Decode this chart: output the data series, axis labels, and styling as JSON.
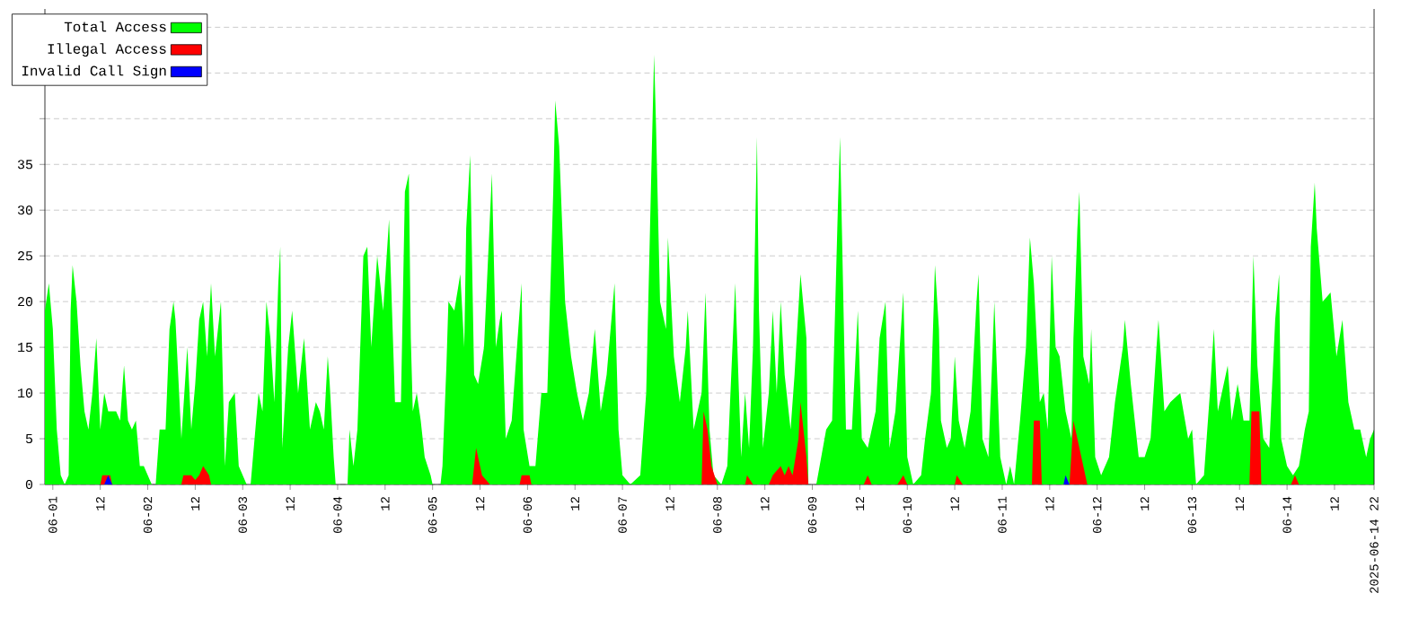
{
  "chart_data": {
    "type": "area",
    "xlim": [
      "2025-05-31T22:00",
      "2025-06-14T22:00"
    ],
    "ylim": [
      0,
      52
    ],
    "xticks": [
      {
        "value": "2025-06-01T00:00",
        "label": "06-01"
      },
      {
        "value": "2025-06-01T12:00",
        "label": "12"
      },
      {
        "value": "2025-06-02T00:00",
        "label": "06-02"
      },
      {
        "value": "2025-06-02T12:00",
        "label": "12"
      },
      {
        "value": "2025-06-03T00:00",
        "label": "06-03"
      },
      {
        "value": "2025-06-03T12:00",
        "label": "12"
      },
      {
        "value": "2025-06-04T00:00",
        "label": "06-04"
      },
      {
        "value": "2025-06-04T12:00",
        "label": "12"
      },
      {
        "value": "2025-06-05T00:00",
        "label": "06-05"
      },
      {
        "value": "2025-06-05T12:00",
        "label": "12"
      },
      {
        "value": "2025-06-06T00:00",
        "label": "06-06"
      },
      {
        "value": "2025-06-06T12:00",
        "label": "12"
      },
      {
        "value": "2025-06-07T00:00",
        "label": "06-07"
      },
      {
        "value": "2025-06-07T12:00",
        "label": "12"
      },
      {
        "value": "2025-06-08T00:00",
        "label": "06-08"
      },
      {
        "value": "2025-06-08T12:00",
        "label": "12"
      },
      {
        "value": "2025-06-09T00:00",
        "label": "06-09"
      },
      {
        "value": "2025-06-09T12:00",
        "label": "12"
      },
      {
        "value": "2025-06-10T00:00",
        "label": "06-10"
      },
      {
        "value": "2025-06-10T12:00",
        "label": "12"
      },
      {
        "value": "2025-06-11T00:00",
        "label": "06-11"
      },
      {
        "value": "2025-06-11T12:00",
        "label": "12"
      },
      {
        "value": "2025-06-12T00:00",
        "label": "06-12"
      },
      {
        "value": "2025-06-12T12:00",
        "label": "12"
      },
      {
        "value": "2025-06-13T00:00",
        "label": "06-13"
      },
      {
        "value": "2025-06-13T12:00",
        "label": "12"
      },
      {
        "value": "2025-06-14T00:00",
        "label": "06-14"
      },
      {
        "value": "2025-06-14T12:00",
        "label": "12"
      },
      {
        "value": "2025-06-14T22:00",
        "label": "2025-06-14 22"
      }
    ],
    "yticks": [
      0,
      5,
      10,
      15,
      20,
      25,
      30,
      35,
      {
        "value": 40,
        "label": null
      },
      {
        "value": 45,
        "label": null
      },
      {
        "value": 50,
        "label": null
      }
    ],
    "grid": "y",
    "legend": "top left",
    "series": [
      {
        "name": "Total Access",
        "color": "#00ff00",
        "x": [
          "2025-05-31T22:00",
          "2025-05-31T23:00",
          "2025-06-01T00:00",
          "2025-06-01T01:00",
          "2025-06-01T02:00",
          "2025-06-01T03:00",
          "2025-06-01T04:00",
          "2025-06-01T04:30",
          "2025-06-01T05:00",
          "2025-06-01T06:00",
          "2025-06-01T07:00",
          "2025-06-01T08:00",
          "2025-06-01T09:00",
          "2025-06-01T10:00",
          "2025-06-01T11:00",
          "2025-06-01T12:00",
          "2025-06-01T13:00",
          "2025-06-01T14:00",
          "2025-06-01T16:00",
          "2025-06-01T17:00",
          "2025-06-01T18:00",
          "2025-06-01T19:00",
          "2025-06-01T20:00",
          "2025-06-01T21:00",
          "2025-06-01T22:00",
          "2025-06-01T23:00",
          "2025-06-02T01:00",
          "2025-06-02T02:00",
          "2025-06-02T03:00",
          "2025-06-02T04:30",
          "2025-06-02T05:30",
          "2025-06-02T06:30",
          "2025-06-02T07:00",
          "2025-06-02T08:30",
          "2025-06-02T10:00",
          "2025-06-02T11:00",
          "2025-06-02T12:00",
          "2025-06-02T13:00",
          "2025-06-02T14:00",
          "2025-06-02T15:00",
          "2025-06-02T16:00",
          "2025-06-02T17:00",
          "2025-06-02T18:30",
          "2025-06-02T19:30",
          "2025-06-02T20:30",
          "2025-06-02T22:00",
          "2025-06-02T23:00",
          "2025-06-03T00:00",
          "2025-06-03T01:00",
          "2025-06-03T02:00",
          "2025-06-03T03:00",
          "2025-06-03T04:00",
          "2025-06-03T05:00",
          "2025-06-03T06:00",
          "2025-06-03T07:00",
          "2025-06-03T08:00",
          "2025-06-03T09:00",
          "2025-06-03T09:30",
          "2025-06-03T10:00",
          "2025-06-03T11:30",
          "2025-06-03T12:30",
          "2025-06-03T14:00",
          "2025-06-03T15:30",
          "2025-06-03T16:00",
          "2025-06-03T17:00",
          "2025-06-03T18:30",
          "2025-06-03T19:30",
          "2025-06-03T20:30",
          "2025-06-03T21:30",
          "2025-06-03T22:00",
          "2025-06-03T23:00",
          "2025-06-03T23:30",
          "2025-06-04T02:30",
          "2025-06-04T03:00",
          "2025-06-04T04:00",
          "2025-06-04T05:00",
          "2025-06-04T06:30",
          "2025-06-04T07:30",
          "2025-06-04T08:30",
          "2025-06-04T10:00",
          "2025-06-04T11:30",
          "2025-06-04T13:00",
          "2025-06-04T14:30",
          "2025-06-04T16:00",
          "2025-06-04T17:00",
          "2025-06-04T18:00",
          "2025-06-04T18:30",
          "2025-06-04T19:00",
          "2025-06-04T20:00",
          "2025-06-04T21:00",
          "2025-06-04T22:00",
          "2025-06-04T23:30",
          "2025-06-05T00:00",
          "2025-06-05T02:00",
          "2025-06-05T02:30",
          "2025-06-05T03:30",
          "2025-06-05T04:00",
          "2025-06-05T05:30",
          "2025-06-05T07:00",
          "2025-06-05T08:00",
          "2025-06-05T08:30",
          "2025-06-05T09:30",
          "2025-06-05T10:30",
          "2025-06-05T11:30",
          "2025-06-05T13:00",
          "2025-06-05T15:00",
          "2025-06-05T16:00",
          "2025-06-05T17:00",
          "2025-06-05T17:30",
          "2025-06-05T18:30",
          "2025-06-05T20:00",
          "2025-06-05T21:30",
          "2025-06-05T22:30",
          "2025-06-05T23:00",
          "2025-06-06T00:30",
          "2025-06-06T02:00",
          "2025-06-06T03:30",
          "2025-06-06T05:00",
          "2025-06-06T06:30",
          "2025-06-06T07:00",
          "2025-06-06T08:00",
          "2025-06-06T09:30",
          "2025-06-06T11:00",
          "2025-06-06T12:30",
          "2025-06-06T14:00",
          "2025-06-06T15:30",
          "2025-06-06T17:00",
          "2025-06-06T18:30",
          "2025-06-06T20:00",
          "2025-06-06T22:00",
          "2025-06-06T23:00",
          "2025-06-07T00:00",
          "2025-06-07T02:00",
          "2025-06-07T04:30",
          "2025-06-07T06:00",
          "2025-06-07T07:30",
          "2025-06-07T08:00",
          "2025-06-07T08:30",
          "2025-06-07T09:30",
          "2025-06-07T11:00",
          "2025-06-07T11:30",
          "2025-06-07T13:00",
          "2025-06-07T14:30",
          "2025-06-07T16:00",
          "2025-06-07T16:30",
          "2025-06-07T18:00",
          "2025-06-07T19:00",
          "2025-06-07T20:00",
          "2025-06-07T21:00",
          "2025-06-07T22:00",
          "2025-06-07T23:00",
          "2025-06-08T01:00",
          "2025-06-08T02:30",
          "2025-06-08T04:30",
          "2025-06-08T06:00",
          "2025-06-08T07:00",
          "2025-06-08T08:00",
          "2025-06-08T09:00",
          "2025-06-08T10:00",
          "2025-06-08T10:30",
          "2025-06-08T11:30",
          "2025-06-08T13:00",
          "2025-06-08T14:00",
          "2025-06-08T15:00",
          "2025-06-08T16:00",
          "2025-06-08T17:00",
          "2025-06-08T18:30",
          "2025-06-08T19:30",
          "2025-06-08T21:00",
          "2025-06-08T22:30",
          "2025-06-08T23:00",
          "2025-06-09T01:00",
          "2025-06-09T03:30",
          "2025-06-09T05:00",
          "2025-06-09T06:30",
          "2025-06-09T07:00",
          "2025-06-09T08:30",
          "2025-06-09T10:00",
          "2025-06-09T11:30",
          "2025-06-09T12:30",
          "2025-06-09T14:00",
          "2025-06-09T16:00",
          "2025-06-09T17:00",
          "2025-06-09T18:30",
          "2025-06-09T19:30",
          "2025-06-09T21:00",
          "2025-06-09T23:00",
          "2025-06-10T00:00",
          "2025-06-10T01:30",
          "2025-06-10T03:30",
          "2025-06-10T04:30",
          "2025-06-10T06:00",
          "2025-06-10T07:00",
          "2025-06-10T08:00",
          "2025-06-10T08:30",
          "2025-06-10T10:00",
          "2025-06-10T11:00",
          "2025-06-10T12:00",
          "2025-06-10T13:00",
          "2025-06-10T14:30",
          "2025-06-10T16:00",
          "2025-06-10T17:30",
          "2025-06-10T18:00",
          "2025-06-10T19:00",
          "2025-06-10T20:30",
          "2025-06-10T21:30",
          "2025-06-10T22:00",
          "2025-06-10T23:30",
          "2025-06-11T01:00",
          "2025-06-11T02:00",
          "2025-06-11T03:00",
          "2025-06-11T04:30",
          "2025-06-11T06:00",
          "2025-06-11T07:00",
          "2025-06-11T08:00",
          "2025-06-11T09:30",
          "2025-06-11T10:30",
          "2025-06-11T11:30",
          "2025-06-11T12:30",
          "2025-06-11T13:30",
          "2025-06-11T14:30",
          "2025-06-11T16:00",
          "2025-06-11T17:30",
          "2025-06-11T18:00",
          "2025-06-11T19:00",
          "2025-06-11T19:30",
          "2025-06-11T20:30",
          "2025-06-11T22:00",
          "2025-06-11T22:30",
          "2025-06-11T23:30",
          "2025-06-12T01:00",
          "2025-06-12T03:00",
          "2025-06-12T04:30",
          "2025-06-12T06:30",
          "2025-06-12T07:00",
          "2025-06-12T08:30",
          "2025-06-12T10:30",
          "2025-06-12T12:00",
          "2025-06-12T13:30",
          "2025-06-12T15:00",
          "2025-06-12T15:30",
          "2025-06-12T17:00",
          "2025-06-12T18:30",
          "2025-06-12T21:00",
          "2025-06-12T23:00",
          "2025-06-13T00:00",
          "2025-06-13T01:00",
          "2025-06-13T03:00",
          "2025-06-13T04:30",
          "2025-06-13T05:30",
          "2025-06-13T06:30",
          "2025-06-13T09:00",
          "2025-06-13T10:00",
          "2025-06-13T11:30",
          "2025-06-13T13:00",
          "2025-06-13T14:30",
          "2025-06-13T15:30",
          "2025-06-13T16:30",
          "2025-06-13T18:00",
          "2025-06-13T19:30",
          "2025-06-13T21:00",
          "2025-06-13T22:00",
          "2025-06-13T22:30",
          "2025-06-14T00:00",
          "2025-06-14T01:30",
          "2025-06-14T03:00",
          "2025-06-14T04:30",
          "2025-06-14T05:30",
          "2025-06-14T06:00",
          "2025-06-14T07:00",
          "2025-06-14T07:30",
          "2025-06-14T09:00",
          "2025-06-14T11:00",
          "2025-06-14T12:30",
          "2025-06-14T14:00",
          "2025-06-14T15:30",
          "2025-06-14T17:00",
          "2025-06-14T18:30",
          "2025-06-14T20:00",
          "2025-06-14T21:00",
          "2025-06-14T22:00"
        ],
        "values": [
          19,
          22,
          17,
          6,
          1,
          0,
          1,
          19,
          24,
          20,
          13,
          8,
          6,
          10,
          16,
          6,
          10,
          8,
          8,
          7,
          13,
          7,
          6,
          7,
          2,
          2,
          0,
          0,
          6,
          6,
          17,
          20,
          18,
          5,
          15,
          6,
          11,
          18,
          20,
          14,
          22,
          14,
          20,
          2,
          9,
          10,
          2,
          1,
          0,
          0,
          5,
          10,
          8,
          20,
          16,
          9,
          22,
          26,
          4,
          15,
          19,
          10,
          16,
          13,
          6,
          9,
          8,
          6,
          14,
          11,
          3,
          0,
          0,
          6,
          2,
          6,
          25,
          26,
          15,
          25,
          19,
          29,
          9,
          9,
          32,
          34,
          16,
          8,
          10,
          7,
          3,
          1,
          0,
          0,
          2,
          13,
          20,
          19,
          23,
          15,
          28,
          36,
          12,
          11,
          15,
          34,
          15,
          18,
          19,
          5,
          7,
          16,
          22,
          6,
          2,
          2,
          10,
          10,
          32,
          42,
          37,
          20,
          14,
          10,
          7,
          10,
          17,
          8,
          12,
          22,
          6,
          1,
          0,
          1,
          10,
          38,
          47,
          39,
          20,
          17,
          27,
          14,
          9,
          15,
          19,
          6,
          8,
          10,
          21,
          6,
          1,
          0,
          2,
          22,
          3,
          10,
          4,
          15,
          38,
          19,
          4,
          10,
          19,
          10,
          20,
          12,
          6,
          12,
          23,
          16,
          0,
          0,
          6,
          7,
          31,
          38,
          6,
          6,
          19,
          5,
          4,
          8,
          16,
          20,
          4,
          8,
          21,
          3,
          0,
          1,
          5,
          10,
          24,
          17,
          7,
          4,
          5,
          14,
          7,
          4,
          8,
          20,
          23,
          5,
          3,
          14,
          20,
          3,
          0,
          2,
          0,
          7,
          15,
          27,
          22,
          9,
          10,
          6,
          25,
          15,
          14,
          8,
          5,
          16,
          28,
          32,
          14,
          11,
          17,
          3,
          1,
          3,
          9,
          15,
          18,
          11,
          3,
          3,
          5,
          15,
          18,
          8,
          9,
          10,
          5,
          6,
          0,
          1,
          10,
          17,
          8,
          13,
          7,
          11,
          7,
          7,
          25,
          13,
          5,
          4,
          18,
          23,
          5,
          2,
          1,
          2,
          6,
          8,
          26,
          33,
          28,
          20,
          21,
          14,
          18,
          9,
          6,
          6,
          3,
          5,
          6
        ]
      },
      {
        "name": "Illegal Access",
        "color": "#ff0000",
        "x": [
          "2025-06-01T12:00",
          "2025-06-01T12:30",
          "2025-06-01T14:30",
          "2025-06-01T15:00",
          "2025-06-02T08:30",
          "2025-06-02T09:00",
          "2025-06-02T11:00",
          "2025-06-02T12:00",
          "2025-06-02T13:00",
          "2025-06-02T14:00",
          "2025-06-02T15:30",
          "2025-06-02T16:00",
          "2025-06-05T10:00",
          "2025-06-05T11:00",
          "2025-06-05T11:30",
          "2025-06-05T12:30",
          "2025-06-05T14:30",
          "2025-06-05T22:00",
          "2025-06-05T22:30",
          "2025-06-06T00:30",
          "2025-06-06T01:00",
          "2025-06-07T20:00",
          "2025-06-07T20:30",
          "2025-06-07T21:30",
          "2025-06-07T22:30",
          "2025-06-08T00:00",
          "2025-06-08T07:00",
          "2025-06-08T07:30",
          "2025-06-08T09:00",
          "2025-06-08T13:00",
          "2025-06-08T14:00",
          "2025-06-08T16:00",
          "2025-06-08T17:00",
          "2025-06-08T18:00",
          "2025-06-08T19:00",
          "2025-06-08T20:30",
          "2025-06-08T21:00",
          "2025-06-08T22:30",
          "2025-06-08T23:00",
          "2025-06-09T13:00",
          "2025-06-09T14:00",
          "2025-06-09T15:00",
          "2025-06-09T21:30",
          "2025-06-09T23:00",
          "2025-06-10T00:00",
          "2025-06-10T12:00",
          "2025-06-10T12:30",
          "2025-06-10T14:00",
          "2025-06-11T07:30",
          "2025-06-11T08:00",
          "2025-06-11T09:30",
          "2025-06-11T10:00",
          "2025-06-11T17:00",
          "2025-06-11T18:00",
          "2025-06-11T19:00",
          "2025-06-11T20:30",
          "2025-06-11T21:30",
          "2025-06-13T14:30",
          "2025-06-13T15:00",
          "2025-06-13T17:00",
          "2025-06-13T17:30",
          "2025-06-14T01:00",
          "2025-06-14T02:00",
          "2025-06-14T03:00"
        ],
        "values": [
          0,
          1,
          1,
          0,
          0,
          1,
          1,
          0.5,
          1,
          2,
          1,
          0,
          0,
          4,
          3,
          1,
          0,
          0,
          1,
          1,
          0,
          0,
          8,
          6,
          2,
          0,
          0,
          1,
          0,
          0,
          1,
          2,
          1,
          2,
          1,
          5,
          9,
          3,
          0,
          0,
          1,
          0,
          0,
          1,
          0,
          0,
          1,
          0,
          0,
          7,
          7,
          0,
          0,
          7,
          5,
          2,
          0,
          0,
          8,
          8,
          0,
          0,
          1,
          0
        ]
      },
      {
        "name": "Invalid Call Sign",
        "color": "#0000ff",
        "x": [
          "2025-06-01T13:00",
          "2025-06-01T14:00",
          "2025-06-01T15:00",
          "2025-06-11T15:30",
          "2025-06-11T16:00",
          "2025-06-11T17:00"
        ],
        "values": [
          0,
          1,
          0,
          0,
          1,
          0
        ]
      }
    ]
  }
}
